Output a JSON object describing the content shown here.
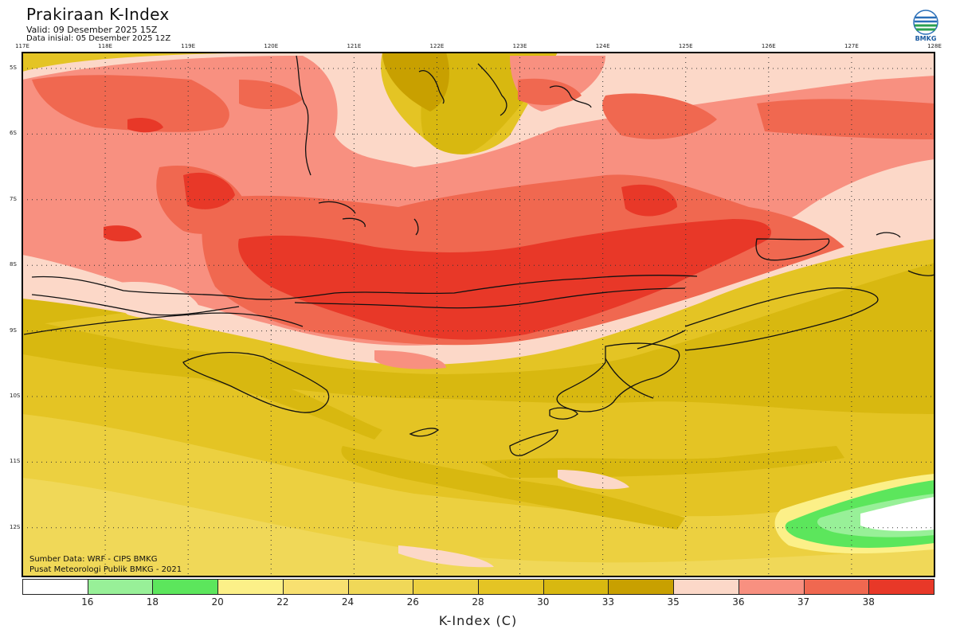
{
  "header": {
    "title": "Prakiraan K-Index",
    "valid": "Valid: 09 Desember 2025 15Z",
    "init": "Data inisial: 05 Desember 2025 12Z"
  },
  "logo": {
    "text": "BMKG",
    "icon": "bmkg-logo-icon"
  },
  "map": {
    "lon_labels": [
      "117E",
      "118E",
      "119E",
      "120E",
      "121E",
      "122E",
      "123E",
      "124E",
      "125E",
      "126E",
      "127E",
      "128E"
    ],
    "lat_labels": [
      "5S",
      "6S",
      "7S",
      "8S",
      "9S",
      "10S",
      "11S",
      "12S"
    ]
  },
  "footer": {
    "source": "Sumber Data: WRF - CIPS BMKG",
    "center": "Pusat Meteorologi Publik BMKG - 2021"
  },
  "colorbar": {
    "ticks": [
      "16",
      "18",
      "20",
      "22",
      "24",
      "26",
      "28",
      "30",
      "33",
      "35",
      "36",
      "37",
      "38"
    ],
    "colors": [
      "#ffffff",
      "#98f098",
      "#5ce65c",
      "#fcf088",
      "#f8e070",
      "#f0d858",
      "#ecd040",
      "#e4c424",
      "#d8b810",
      "#c8a000",
      "#fcd8c8",
      "#f89080",
      "#f06850",
      "#e83828"
    ],
    "title": "K-Index (C)"
  }
}
